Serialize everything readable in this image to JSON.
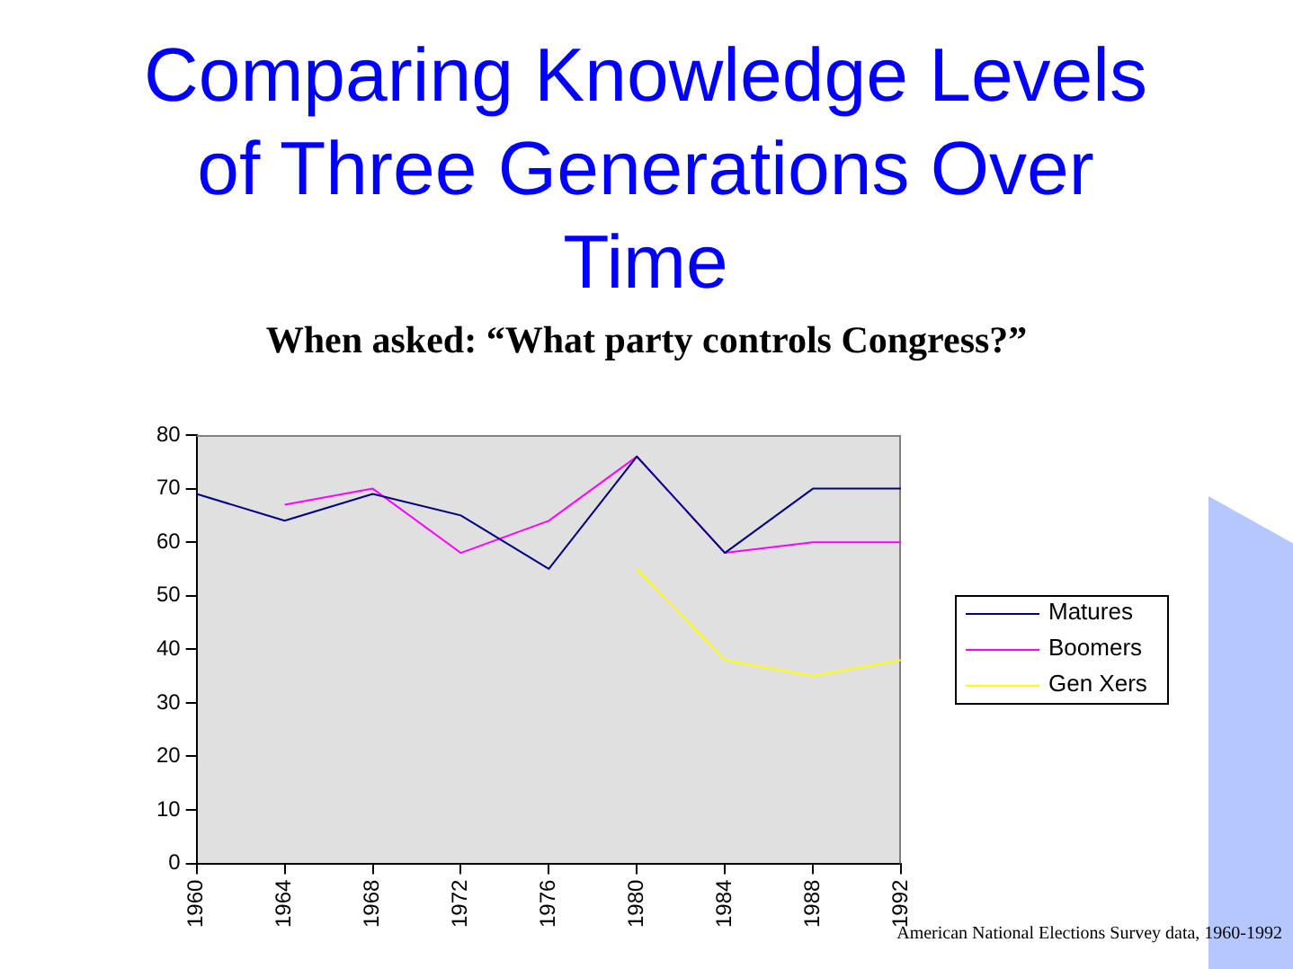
{
  "chart_data": {
    "type": "line",
    "title": "Comparing Knowledge Levels of Three Generations Over Time",
    "subtitle": "When asked: “What party controls Congress?”",
    "annotations": [
      "American National Elections Survey data, 1960-1992"
    ],
    "x": [
      1960,
      1964,
      1968,
      1972,
      1976,
      1980,
      1984,
      1988,
      1992
    ],
    "series": [
      {
        "name": "Matures",
        "color": "#000080",
        "values": [
          69,
          64,
          69,
          65,
          55,
          76,
          58,
          70,
          70
        ]
      },
      {
        "name": "Boomers",
        "color": "#ff00ff",
        "values": [
          null,
          67,
          70,
          58,
          64,
          76,
          58,
          60,
          60
        ]
      },
      {
        "name": "Gen Xers",
        "color": "#ffff00",
        "values": [
          null,
          null,
          null,
          null,
          null,
          55,
          38,
          35,
          38
        ]
      }
    ],
    "xlim": [
      1960,
      1992
    ],
    "xticks": [
      1960,
      1964,
      1968,
      1972,
      1976,
      1980,
      1984,
      1988,
      1992
    ],
    "ylim": [
      0,
      80
    ],
    "yticks": [
      0,
      10,
      20,
      30,
      40,
      50,
      60,
      70,
      80
    ],
    "grid": false,
    "legend": "right",
    "marker": "none"
  }
}
